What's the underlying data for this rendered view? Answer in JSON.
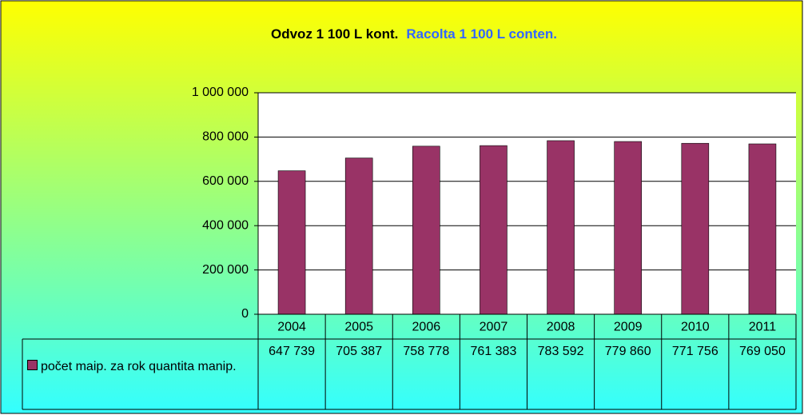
{
  "chart_data": {
    "type": "bar",
    "title": [
      {
        "text": "Odvoz 1 100 L kont.",
        "color": "#000000"
      },
      {
        "text": "Racolta 1 100 L conten.",
        "color": "#3366ff"
      }
    ],
    "categories": [
      "2004",
      "2005",
      "2006",
      "2007",
      "2008",
      "2009",
      "2010",
      "2011"
    ],
    "series": [
      {
        "name": "počet maip. za rok quantita manip.",
        "color": "#993366",
        "values": [
          647739,
          705387,
          758778,
          761383,
          783592,
          779860,
          771756,
          769050
        ],
        "value_labels": [
          "647 739",
          "705 387",
          "758 778",
          "761 383",
          "783 592",
          "779 860",
          "771 756",
          "769 050"
        ]
      }
    ],
    "ylim": [
      0,
      1000000
    ],
    "yticks": [
      0,
      {
        "value": 200000,
        "label": "200 000"
      },
      {
        "value": 400000,
        "label": "400 000"
      },
      {
        "value": 600000,
        "label": "600 000"
      },
      {
        "value": 800000,
        "label": "800 000"
      },
      {
        "value": 1000000,
        "label": "1 000 000"
      }
    ],
    "grid": true,
    "data_table": true
  }
}
